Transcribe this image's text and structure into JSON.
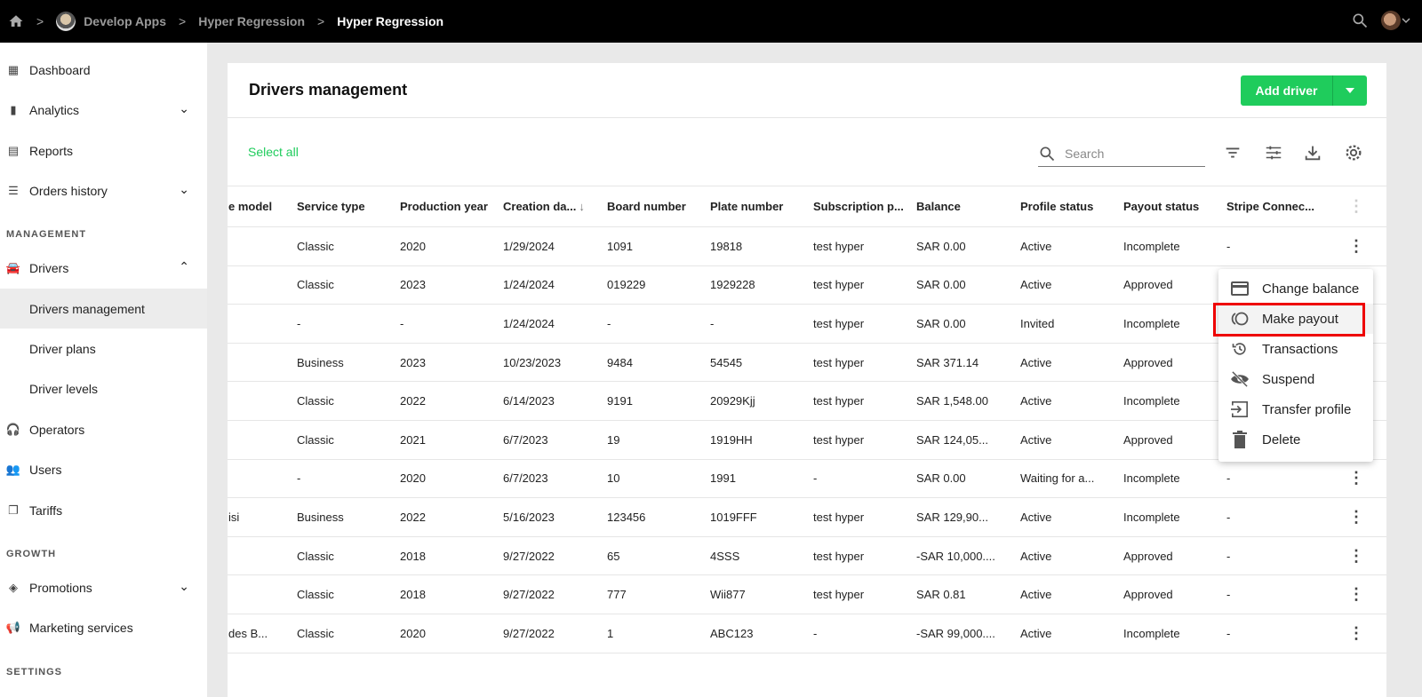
{
  "topbar": {
    "breadcrumbs": [
      "Develop Apps",
      "Hyper Regression",
      "Hyper Regression"
    ],
    "icons": [
      "home-icon",
      "search-icon",
      "user-avatar",
      "chevron-down-icon"
    ]
  },
  "sidebar": {
    "items": [
      {
        "label": "Dashboard",
        "icon": "dashboard-icon"
      },
      {
        "label": "Analytics",
        "icon": "bar-chart-icon"
      },
      {
        "label": "Reports",
        "icon": "report-icon"
      },
      {
        "label": "Orders history",
        "icon": "list-icon"
      },
      {
        "label": "Drivers",
        "icon": "car-icon"
      },
      {
        "label": "Drivers management"
      },
      {
        "label": "Driver plans"
      },
      {
        "label": "Driver levels"
      },
      {
        "label": "Operators",
        "icon": "headset-icon"
      },
      {
        "label": "Users",
        "icon": "users-icon"
      },
      {
        "label": "Tariffs",
        "icon": "tariffs-icon"
      },
      {
        "label": "Promotions",
        "icon": "tag-icon"
      },
      {
        "label": "Marketing services",
        "icon": "megaphone-icon"
      }
    ],
    "sections": [
      "MANAGEMENT",
      "GROWTH",
      "SETTINGS"
    ]
  },
  "page": {
    "title": "Drivers management",
    "add_button": "Add driver",
    "select_all": "Select all",
    "search_placeholder": "Search"
  },
  "table": {
    "columns": [
      "e model",
      "Service type",
      "Production year",
      "Creation da...",
      "Board number",
      "Plate number",
      "Subscription p...",
      "Balance",
      "Profile status",
      "Payout status",
      "Stripe Connec..."
    ],
    "sorted_column": "Creation da...",
    "rows": [
      [
        "",
        "Classic",
        "2020",
        "1/29/2024",
        "1091",
        "19818",
        "test hyper",
        "SAR 0.00",
        "Active",
        "Incomplete",
        "-"
      ],
      [
        "",
        "Classic",
        "2023",
        "1/24/2024",
        "019229",
        "1929228",
        "test hyper",
        "SAR 0.00",
        "Active",
        "Approved",
        ""
      ],
      [
        "",
        "-",
        "-",
        "1/24/2024",
        "-",
        "-",
        "test hyper",
        "SAR 0.00",
        "Invited",
        "Incomplete",
        ""
      ],
      [
        "",
        "Business",
        "2023",
        "10/23/2023",
        "9484",
        "54545",
        "test hyper",
        "SAR 371.14",
        "Active",
        "Approved",
        ""
      ],
      [
        "",
        "Classic",
        "2022",
        "6/14/2023",
        "9191",
        "20929Kjj",
        "test hyper",
        "SAR 1,548.00",
        "Active",
        "Incomplete",
        ""
      ],
      [
        "",
        "Classic",
        "2021",
        "6/7/2023",
        "19",
        "1919HH",
        "test hyper",
        "SAR 124,05...",
        "Active",
        "Approved",
        ""
      ],
      [
        "",
        "-",
        "2020",
        "6/7/2023",
        "10",
        "1991",
        "-",
        "SAR 0.00",
        "Waiting for a...",
        "Incomplete",
        "-"
      ],
      [
        "isi",
        "Business",
        "2022",
        "5/16/2023",
        "123456",
        "1019FFF",
        "test hyper",
        "SAR 129,90...",
        "Active",
        "Incomplete",
        "-"
      ],
      [
        "",
        "Classic",
        "2018",
        "9/27/2022",
        "65",
        "4SSS",
        "test hyper",
        "-SAR 10,000....",
        "Active",
        "Approved",
        "-"
      ],
      [
        "",
        "Classic",
        "2018",
        "9/27/2022",
        "777",
        "Wii877",
        "test hyper",
        "SAR 0.81",
        "Active",
        "Approved",
        "-"
      ],
      [
        "des B...",
        "Classic",
        "2020",
        "9/27/2022",
        "1",
        "ABC123",
        "-",
        "-SAR 99,000....",
        "Active",
        "Incomplete",
        "-"
      ]
    ]
  },
  "context_menu": {
    "items": [
      {
        "label": "Change balance",
        "icon": "credit-card-icon"
      },
      {
        "label": "Make payout",
        "icon": "payout-icon",
        "highlighted": true
      },
      {
        "label": "Transactions",
        "icon": "history-icon"
      },
      {
        "label": "Suspend",
        "icon": "eye-off-icon"
      },
      {
        "label": "Transfer profile",
        "icon": "transfer-icon"
      },
      {
        "label": "Delete",
        "icon": "trash-icon"
      }
    ]
  },
  "colors": {
    "accent": "#1fcc5c",
    "topbar": "#000000",
    "highlight_box": "#e00000"
  }
}
